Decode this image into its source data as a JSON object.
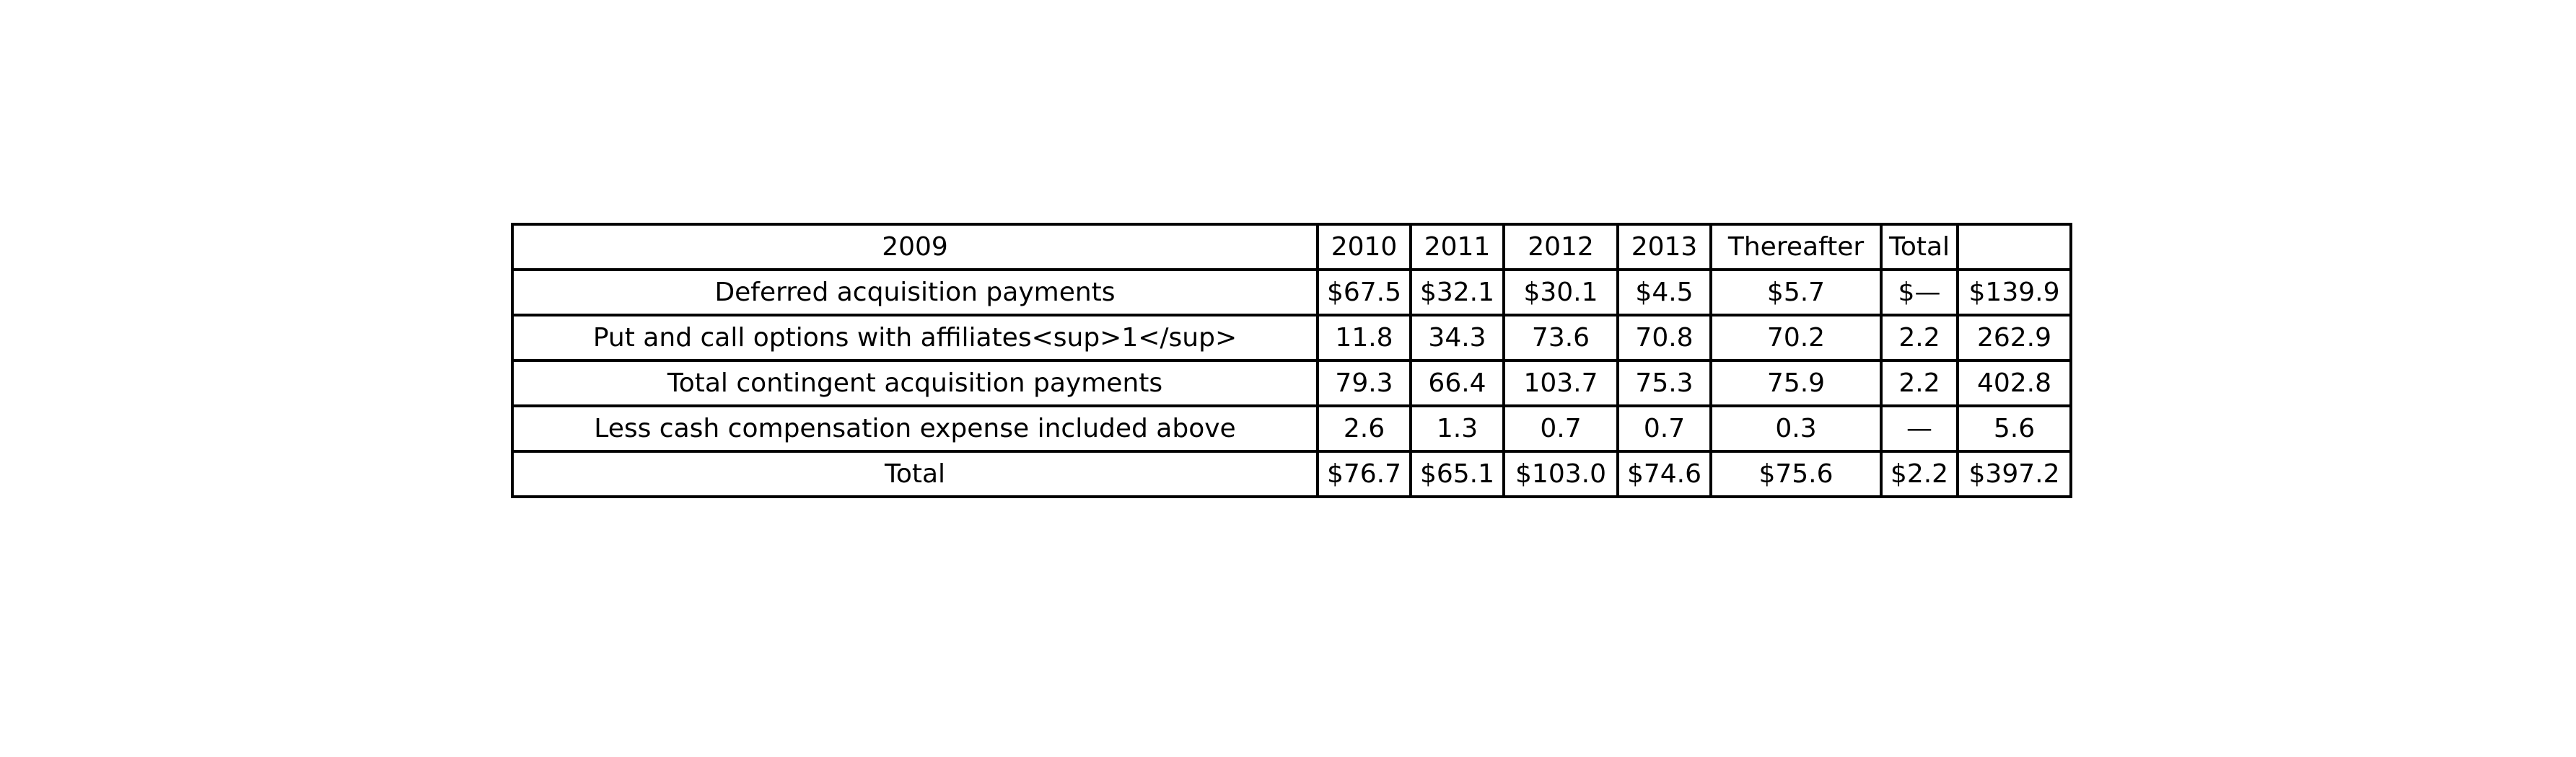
{
  "chart_data": {
    "type": "table",
    "header": [
      "2009",
      "2010",
      "2011",
      "2012",
      "2013",
      "Thereafter",
      "Total",
      ""
    ],
    "rows": [
      [
        "Deferred acquisition payments",
        "$67.5",
        "$32.1",
        "$30.1",
        "$4.5",
        "$5.7",
        "$—",
        "$139.9"
      ],
      [
        "Put and call options with affiliates<sup>1</sup>",
        "11.8",
        "34.3",
        "73.6",
        "70.8",
        "70.2",
        "2.2",
        "262.9"
      ],
      [
        "Total contingent acquisition payments",
        "79.3",
        "66.4",
        "103.7",
        "75.3",
        "75.9",
        "2.2",
        "402.8"
      ],
      [
        "Less cash compensation expense included above",
        "2.6",
        "1.3",
        "0.7",
        "0.7",
        "0.3",
        "—",
        "5.6"
      ],
      [
        "Total",
        "$76.7",
        "$65.1",
        "$103.0",
        "$74.6",
        "$75.6",
        "$2.2",
        "$397.2"
      ]
    ]
  }
}
